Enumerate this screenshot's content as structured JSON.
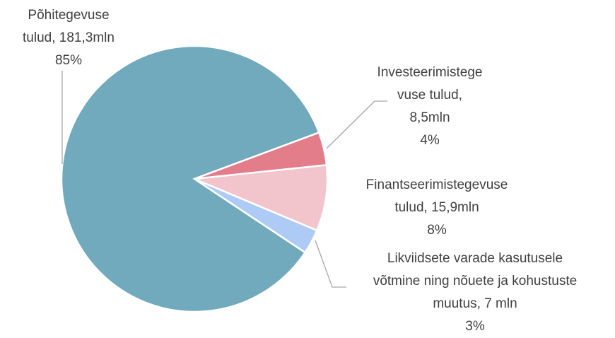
{
  "chart_data": {
    "type": "pie",
    "categories": [
      [
        "Põhitegevuse",
        "tulud, 181,3mln"
      ],
      [
        "Investeerimistege",
        "vuse tulud,",
        "8,5mln"
      ],
      [
        "Finantseerimistegevuse",
        "tulud, 15,9mln"
      ],
      [
        "Likviidsete varade kasutusele",
        "võtmine ning nõuete ja kohustuste",
        "muutus, 7 mln"
      ]
    ],
    "values": [
      85,
      4,
      8,
      3
    ],
    "value_labels": [
      "85%",
      "4%",
      "8%",
      "3%"
    ],
    "colors": [
      "#71a9bd",
      "#e47d8a",
      "#f2c4cc",
      "#aecbf5"
    ]
  }
}
